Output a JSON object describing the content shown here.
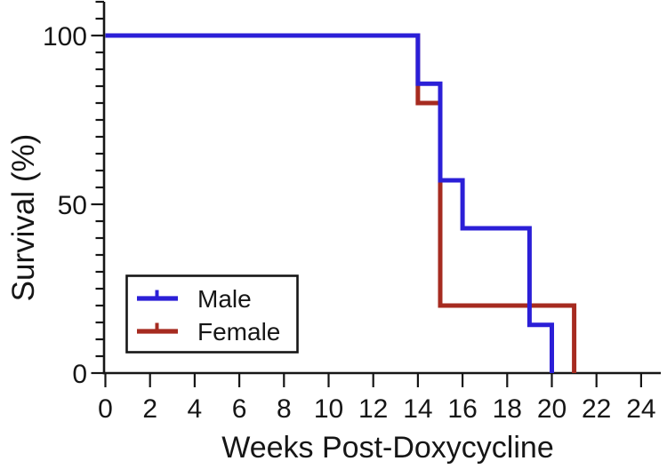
{
  "chart_data": {
    "type": "line",
    "variant": "kaplan-meier-survival-step",
    "title": "",
    "xlabel": "Weeks Post-Doxycycline",
    "ylabel": "Survival (%)",
    "xlim": [
      0,
      24
    ],
    "ylim": [
      0,
      110
    ],
    "x_ticks": [
      0,
      2,
      4,
      6,
      8,
      10,
      12,
      14,
      16,
      18,
      20,
      22,
      24
    ],
    "y_major_ticks": [
      0,
      50,
      100
    ],
    "y_minor_tick_interval": 5,
    "grid": false,
    "background": "#ffffff",
    "axis_color": "#161616",
    "legend_position": "lower-left-inside",
    "series": [
      {
        "name": "Female",
        "color": "#A62B20",
        "steps_percent": [
          [
            0,
            100
          ],
          [
            14,
            100
          ],
          [
            14,
            80
          ],
          [
            15,
            80
          ],
          [
            15,
            20
          ],
          [
            21,
            20
          ],
          [
            21,
            0
          ]
        ]
      },
      {
        "name": "Male",
        "color": "#2B1FD7",
        "steps_percent": [
          [
            0,
            100
          ],
          [
            14,
            100
          ],
          [
            14,
            85.7
          ],
          [
            15,
            85.7
          ],
          [
            15,
            57.1
          ],
          [
            16,
            57.1
          ],
          [
            16,
            42.9
          ],
          [
            19,
            42.9
          ],
          [
            19,
            14.3
          ],
          [
            20,
            14.3
          ],
          [
            20,
            0
          ]
        ]
      }
    ],
    "legend": [
      {
        "label": "Male",
        "color": "#2B1FD7"
      },
      {
        "label": "Female",
        "color": "#A62B20"
      }
    ]
  }
}
